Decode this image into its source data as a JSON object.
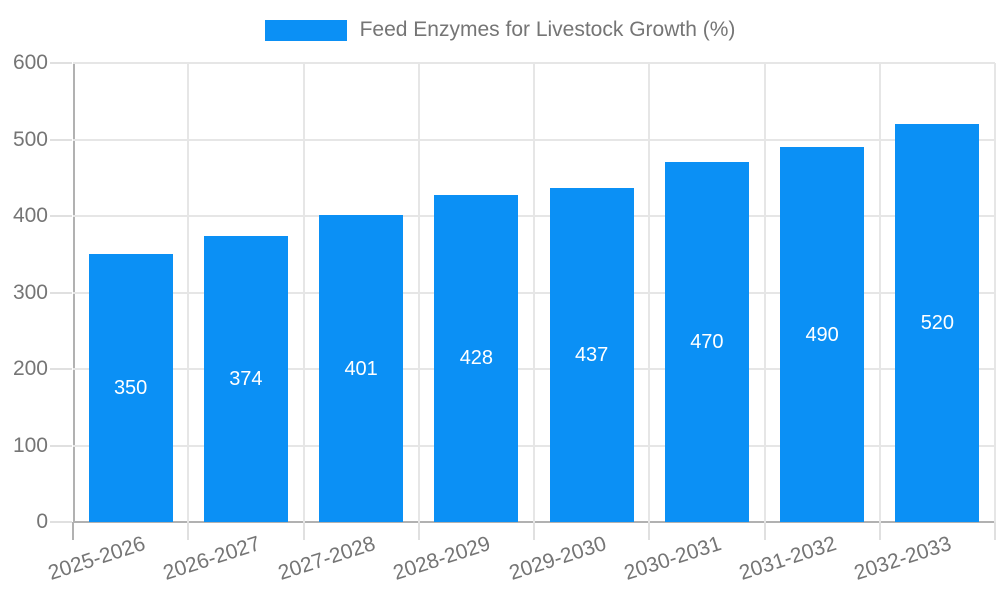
{
  "legend": {
    "series_label": "Feed Enzymes for Livestock Growth (%)"
  },
  "colors": {
    "bar": "#0b90f5",
    "bar_label": "#ffffff",
    "axis_text": "#757575",
    "grid_line": "#e6e6e6",
    "axis_line": "#b1b1b1",
    "tick_line": "#e0e0e0"
  },
  "chart_data": {
    "type": "bar",
    "title": "",
    "xlabel": "",
    "ylabel": "",
    "series_name": "Feed Enzymes for Livestock Growth (%)",
    "categories": [
      "2025-2026",
      "2026-2027",
      "2027-2028",
      "2028-2029",
      "2029-2030",
      "2030-2031",
      "2031-2032",
      "2032-2033"
    ],
    "values": [
      350,
      374,
      401,
      428,
      437,
      470,
      490,
      520
    ],
    "ylim": [
      0,
      600
    ],
    "yticks": [
      0,
      100,
      200,
      300,
      400,
      500,
      600
    ],
    "grid": true,
    "legend_position": "top",
    "value_labels": "inside-center"
  }
}
